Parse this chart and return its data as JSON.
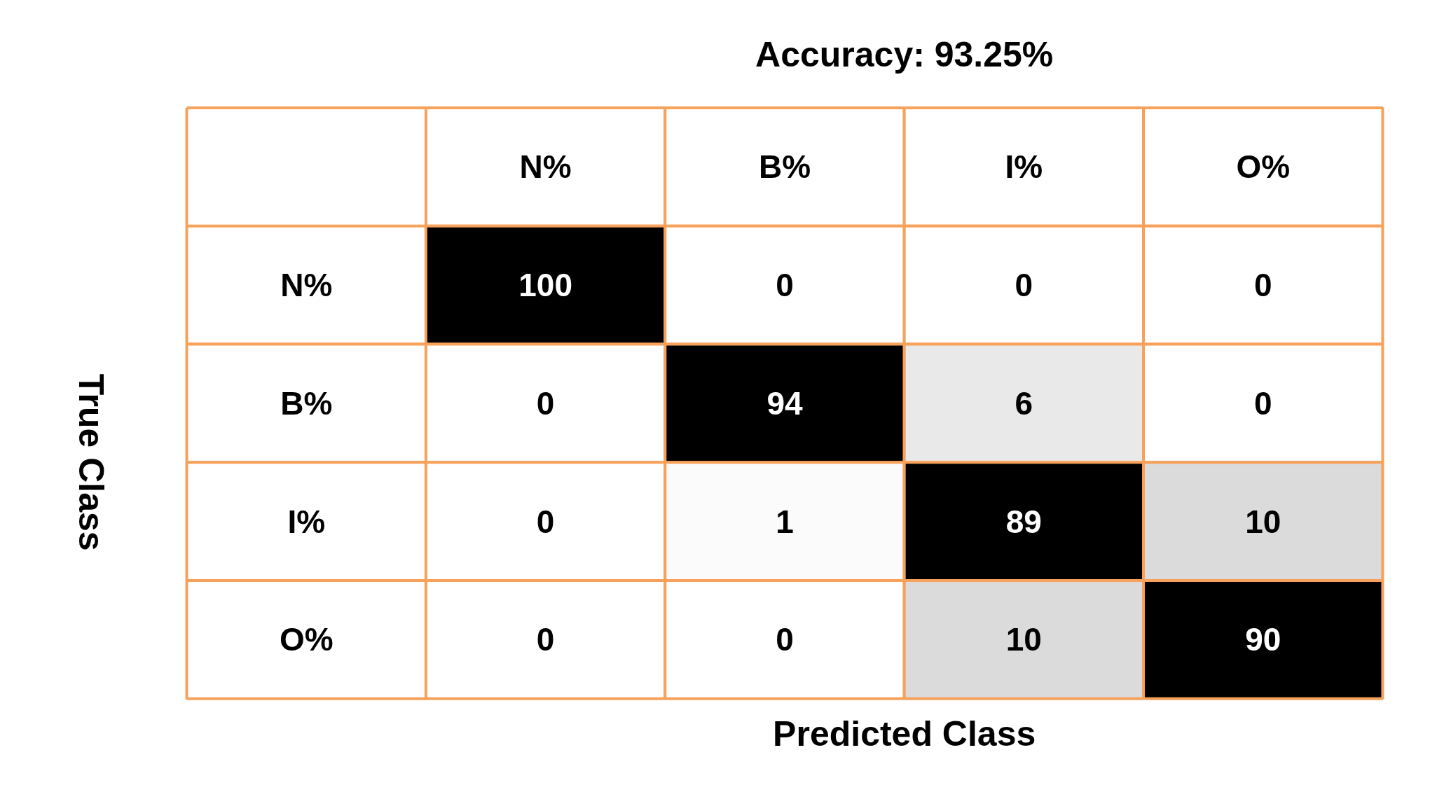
{
  "chart_data": {
    "type": "heatmap",
    "title": "Accuracy: 93.25%",
    "xlabel": "Predicted Class",
    "ylabel": "True Class",
    "categories": [
      "N%",
      "B%",
      "I%",
      "O%"
    ],
    "y_categories": [
      "N%",
      "B%",
      "I%",
      "O%"
    ],
    "cells": [
      [
        100,
        0,
        0,
        0
      ],
      [
        0,
        94,
        6,
        0
      ],
      [
        0,
        1,
        89,
        10
      ],
      [
        0,
        0,
        10,
        90
      ]
    ],
    "data_labels": true
  }
}
